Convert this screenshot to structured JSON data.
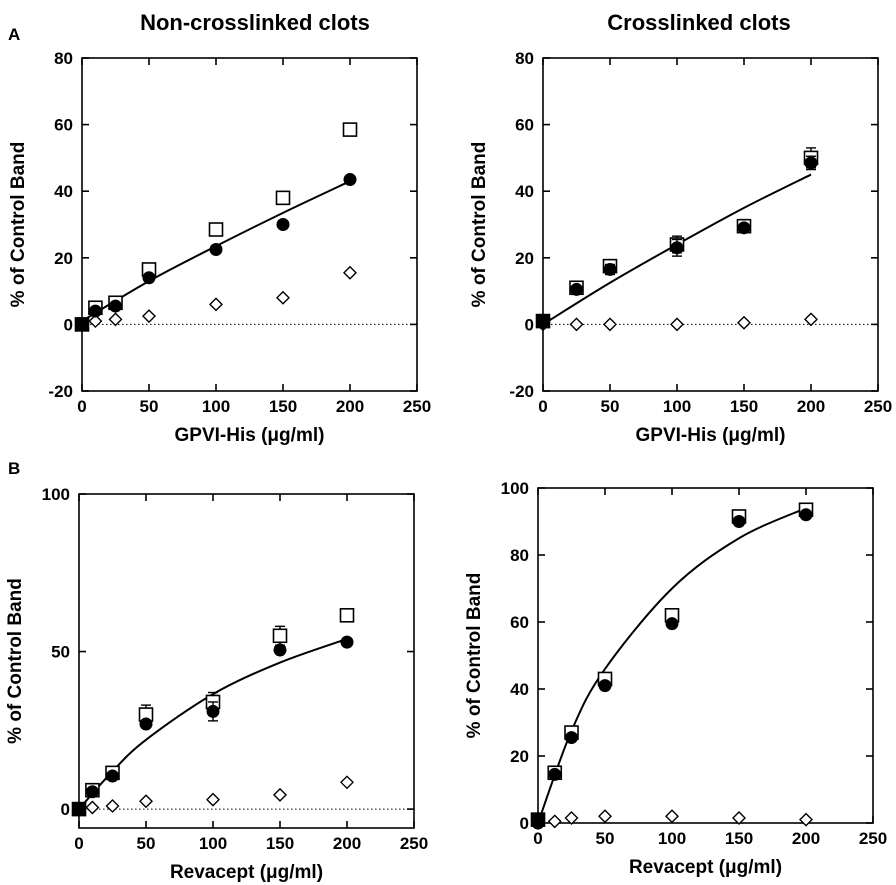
{
  "figure": {
    "col_titles": [
      "Non-crosslinked clots",
      "Crosslinked clots"
    ],
    "panel_letters": [
      "A",
      "B"
    ]
  },
  "chart_data": [
    {
      "type": "scatter",
      "panel": "A",
      "title": "Non-crosslinked clots",
      "xlabel": "GPVI-His (μg/ml)",
      "ylabel": "% of Control Band",
      "xlim": [
        0,
        250
      ],
      "ylim": [
        -20,
        80
      ],
      "xticks": [
        0,
        50,
        100,
        150,
        200,
        250
      ],
      "yticks": [
        -20,
        0,
        20,
        40,
        60,
        80
      ],
      "zero_line": true,
      "series": [
        {
          "marker": "open-square",
          "x": [
            0,
            10,
            25,
            50,
            100,
            150,
            200
          ],
          "y": [
            0,
            5,
            6.5,
            16.5,
            28.5,
            38,
            58.5
          ],
          "err": [
            0,
            0,
            0,
            0,
            0,
            0,
            0
          ]
        },
        {
          "marker": "filled-circle",
          "x": [
            0,
            10,
            25,
            50,
            100,
            150,
            200
          ],
          "y": [
            0,
            4,
            5.5,
            14,
            22.5,
            30,
            43.5
          ],
          "err": [
            0,
            0,
            0,
            0,
            0,
            0,
            0
          ]
        },
        {
          "marker": "open-diamond",
          "x": [
            0,
            10,
            25,
            50,
            100,
            150,
            200
          ],
          "y": [
            0,
            1,
            1.5,
            2.5,
            6,
            8,
            15.5
          ],
          "err": [
            0,
            0,
            0,
            0,
            0,
            0,
            0
          ]
        }
      ],
      "fit": {
        "x": [
          0,
          50,
          100,
          150,
          200
        ],
        "y": [
          1,
          13,
          23.5,
          33.5,
          43
        ]
      }
    },
    {
      "type": "scatter",
      "panel": "A",
      "title": "Crosslinked clots",
      "xlabel": "GPVI-His (μg/ml)",
      "ylabel": "% of Control Band",
      "xlim": [
        0,
        250
      ],
      "ylim": [
        -20,
        80
      ],
      "xticks": [
        0,
        50,
        100,
        150,
        200,
        250
      ],
      "yticks": [
        -20,
        0,
        20,
        40,
        60,
        80
      ],
      "zero_line": true,
      "series": [
        {
          "marker": "open-square",
          "x": [
            0,
            25,
            50,
            100,
            150,
            200
          ],
          "y": [
            1,
            11,
            17.5,
            24,
            29.5,
            50
          ],
          "err": [
            0,
            0,
            1.5,
            2.5,
            1,
            3
          ]
        },
        {
          "marker": "filled-circle",
          "x": [
            0,
            25,
            50,
            100,
            150,
            200
          ],
          "y": [
            0.5,
            10.5,
            16.5,
            23,
            29,
            48.5
          ],
          "err": [
            0,
            1,
            1.5,
            2.5,
            1,
            2
          ]
        },
        {
          "marker": "open-diamond",
          "x": [
            0,
            25,
            50,
            100,
            150,
            200
          ],
          "y": [
            0,
            0,
            0,
            0,
            0.5,
            1.5
          ],
          "err": [
            0,
            0,
            0,
            0,
            0,
            0
          ]
        }
      ],
      "fit": {
        "x": [
          0,
          50,
          100,
          150,
          200
        ],
        "y": [
          0,
          12.5,
          24,
          35,
          45
        ]
      }
    },
    {
      "type": "scatter",
      "panel": "B",
      "title": "",
      "xlabel": "Revacept (μg/ml)",
      "ylabel": "% of Control Band",
      "xlim": [
        0,
        250
      ],
      "ylim": [
        -6,
        100
      ],
      "xticks": [
        0,
        50,
        100,
        150,
        200,
        250
      ],
      "yticks": [
        0,
        50,
        100
      ],
      "zero_line": true,
      "series": [
        {
          "marker": "open-square",
          "x": [
            0,
            10,
            25,
            50,
            100,
            150,
            200
          ],
          "y": [
            0,
            6,
            11.5,
            30,
            34,
            55,
            61.5
          ],
          "err": [
            0,
            0,
            0,
            3,
            3,
            3,
            0
          ]
        },
        {
          "marker": "filled-circle",
          "x": [
            0,
            10,
            25,
            50,
            100,
            150,
            200
          ],
          "y": [
            0,
            5.5,
            10.5,
            27,
            31,
            50.5,
            53
          ],
          "err": [
            0,
            0,
            0,
            0,
            3,
            0,
            0
          ]
        },
        {
          "marker": "open-diamond",
          "x": [
            0,
            10,
            25,
            50,
            100,
            150,
            200
          ],
          "y": [
            0,
            0.5,
            1,
            2.5,
            3,
            4.5,
            8.5
          ],
          "err": [
            0,
            0,
            0,
            0,
            0,
            0,
            0
          ]
        }
      ],
      "fit": {
        "x": [
          0,
          25,
          50,
          100,
          150,
          200
        ],
        "y": [
          0,
          12,
          22,
          36.5,
          46.5,
          54
        ]
      }
    },
    {
      "type": "scatter",
      "panel": "B",
      "title": "",
      "xlabel": "Revacept (μg/ml)",
      "ylabel": "% of Control Band",
      "xlim": [
        0,
        250
      ],
      "ylim": [
        0,
        100
      ],
      "xticks": [
        0,
        50,
        100,
        150,
        200,
        250
      ],
      "yticks": [
        0,
        20,
        40,
        60,
        80,
        100
      ],
      "zero_line": false,
      "series": [
        {
          "marker": "open-square",
          "x": [
            0,
            12.5,
            25,
            50,
            100,
            150,
            200
          ],
          "y": [
            1,
            15,
            27,
            43,
            62,
            91.5,
            93.5
          ],
          "err": [
            0,
            0,
            0,
            0,
            0,
            0,
            0
          ]
        },
        {
          "marker": "filled-circle",
          "x": [
            0,
            12.5,
            25,
            50,
            100,
            150,
            200
          ],
          "y": [
            0,
            14.5,
            25.5,
            41,
            59.5,
            90,
            92
          ],
          "err": [
            0,
            0,
            0,
            0,
            0,
            0,
            0
          ]
        },
        {
          "marker": "open-diamond",
          "x": [
            0,
            12.5,
            25,
            50,
            100,
            150,
            200
          ],
          "y": [
            0,
            0.5,
            1.5,
            2,
            2,
            1.5,
            1
          ],
          "err": [
            0,
            0,
            0,
            0,
            0,
            0,
            0
          ]
        }
      ],
      "fit": {
        "x": [
          0,
          25,
          50,
          100,
          150,
          200
        ],
        "y": [
          0,
          27.5,
          46,
          70,
          85,
          94
        ]
      }
    }
  ]
}
